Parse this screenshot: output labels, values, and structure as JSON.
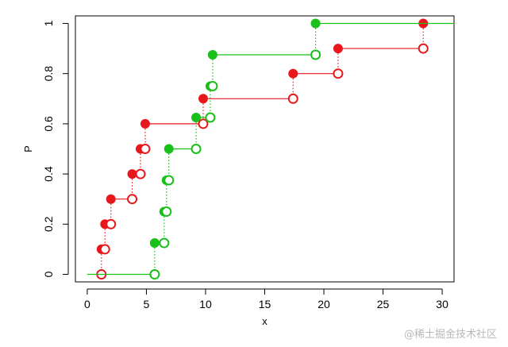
{
  "chart_data": {
    "type": "line",
    "subtype": "ecdf-step",
    "xlabel": "x",
    "ylabel": "P",
    "xlim": [
      -1,
      31
    ],
    "ylim": [
      -0.03,
      1.03
    ],
    "x_ticks": [
      0,
      5,
      10,
      15,
      20,
      25,
      30
    ],
    "y_ticks": [
      0,
      0.2,
      0.4,
      0.6,
      0.8,
      1
    ],
    "x_tick_labels": [
      "0",
      "5",
      "10",
      "15",
      "20",
      "25",
      "30"
    ],
    "y_tick_labels": [
      "0",
      "0.2",
      "0.4",
      "0.6",
      "0.8",
      "1"
    ],
    "grid": false,
    "series": [
      {
        "color": "#e8171c",
        "x": [
          1.2,
          1.5,
          2.0,
          3.8,
          4.5,
          4.9,
          9.8,
          17.4,
          21.2,
          28.4
        ],
        "y": [
          0.1,
          0.2,
          0.3,
          0.4,
          0.5,
          0.6,
          0.7,
          0.8,
          0.9,
          1.0
        ],
        "x_end": 28.4
      },
      {
        "color": "#18c018",
        "x": [
          5.7,
          6.5,
          6.7,
          6.9,
          9.2,
          10.4,
          10.6,
          19.3
        ],
        "y": [
          0.125,
          0.25,
          0.375,
          0.5,
          0.625,
          0.75,
          0.875,
          1.0
        ],
        "x_start": 0,
        "x_end": 31
      }
    ]
  },
  "watermark": "@稀土掘金技术社区"
}
